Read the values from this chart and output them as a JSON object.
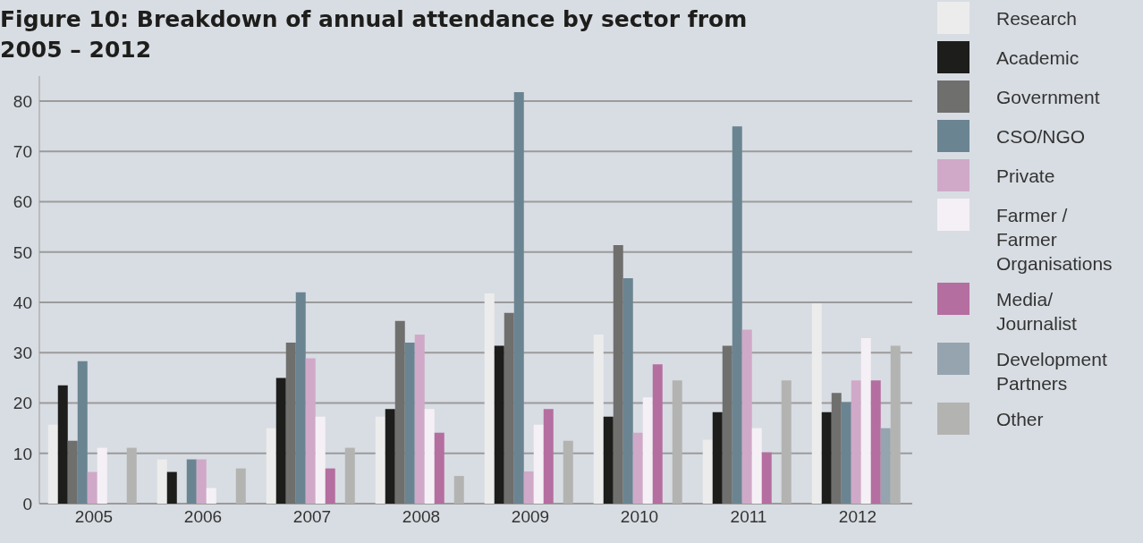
{
  "chart_data": {
    "type": "bar",
    "title": "Figure 10: Breakdown of annual attendance by sector from 2005 – 2012",
    "categories": [
      "2005",
      "2006",
      "2007",
      "2008",
      "2009",
      "2010",
      "2011",
      "2012"
    ],
    "series": [
      {
        "name": "Research",
        "color": "#ececec",
        "values": [
          15.7,
          8.8,
          15,
          17.3,
          41.8,
          33.6,
          12.7,
          39.8
        ]
      },
      {
        "name": "Academic",
        "color": "#1d1d1b",
        "values": [
          23.5,
          6.3,
          25,
          18.8,
          31.4,
          17.3,
          18.2,
          18.2
        ]
      },
      {
        "name": "Government",
        "color": "#6f6f6e",
        "values": [
          12.5,
          null,
          32,
          36.3,
          37.9,
          51.4,
          31.4,
          22
        ]
      },
      {
        "name": "CSO/NGO",
        "color": "#6b8492",
        "values": [
          28.3,
          8.8,
          42,
          32,
          81.8,
          44.8,
          75,
          20.2
        ]
      },
      {
        "name": "Private",
        "color": "#d0a9c8",
        "values": [
          6.3,
          8.8,
          28.9,
          33.6,
          6.4,
          14.1,
          34.6,
          24.5
        ]
      },
      {
        "name": "Farmer / Farmer Organisations",
        "color": "#f5f0f6",
        "values": [
          11.1,
          3.1,
          17.3,
          18.8,
          15.7,
          21.1,
          15,
          32.9
        ]
      },
      {
        "name": "Media/ Journalist",
        "color": "#b56ea0",
        "values": [
          null,
          null,
          7,
          14.1,
          18.8,
          27.7,
          10.2,
          24.5
        ]
      },
      {
        "name": "Development Partners",
        "color": "#95a4ae",
        "values": [
          null,
          null,
          null,
          null,
          null,
          null,
          null,
          15
        ]
      },
      {
        "name": "Other",
        "color": "#b3b3b1",
        "values": [
          11.1,
          7,
          11.1,
          5.5,
          12.5,
          24.5,
          24.5,
          31.4
        ]
      }
    ],
    "ylim": [
      0,
      85
    ],
    "yticks": [
      0,
      10,
      20,
      30,
      40,
      50,
      60,
      70,
      80
    ],
    "grid": "y",
    "legend": "right"
  }
}
